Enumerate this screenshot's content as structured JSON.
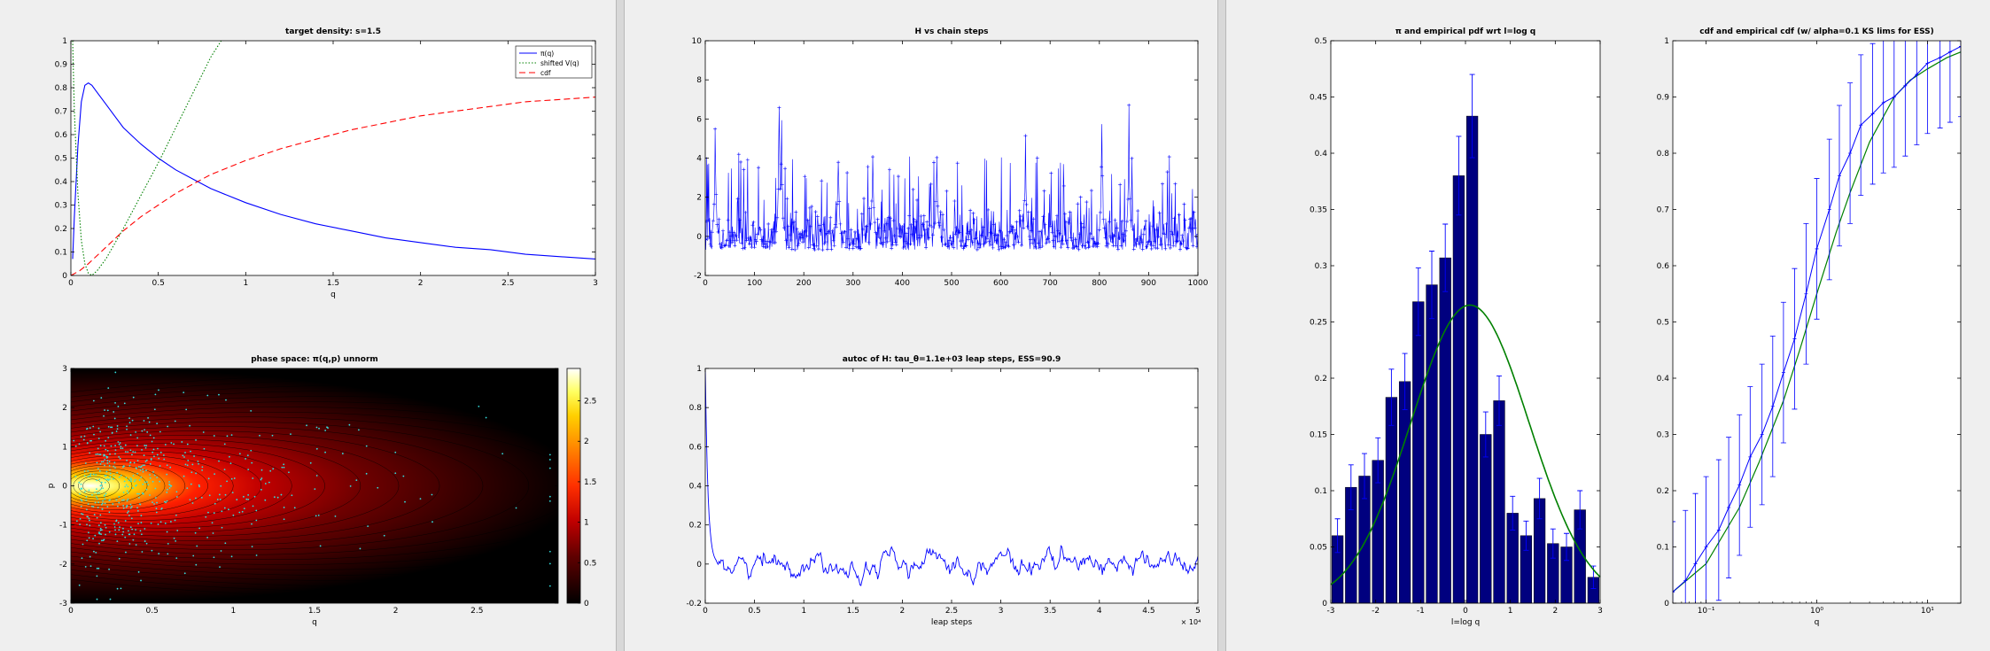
{
  "colors": {
    "blue": "#0000ff",
    "green": "#008000",
    "red": "#ff0000",
    "navy": "#00007f",
    "cyan": "#33e0e0"
  },
  "chart_data": [
    {
      "id": "target-density",
      "type": "line",
      "title": "target density: s=1.5",
      "xlabel": "q",
      "ylabel": "",
      "xlim": [
        0,
        3
      ],
      "ylim": [
        0,
        1
      ],
      "xticks": [
        "0",
        "0.5",
        "1",
        "1.5",
        "2",
        "2.5",
        "3"
      ],
      "yticks": [
        "0",
        "0.1",
        "0.2",
        "0.3",
        "0.4",
        "0.5",
        "0.6",
        "0.7",
        "0.8",
        "0.9",
        "1"
      ],
      "legend": {
        "position": "top-right",
        "entries": [
          "π(q)",
          "shifted V(q)",
          "cdf"
        ]
      },
      "series": [
        {
          "name": "π(q)",
          "color": "#0000ff",
          "style": "solid",
          "x": [
            0.01,
            0.02,
            0.04,
            0.06,
            0.08,
            0.1,
            0.12,
            0.15,
            0.2,
            0.25,
            0.3,
            0.4,
            0.5,
            0.6,
            0.7,
            0.8,
            0.9,
            1,
            1.2,
            1.4,
            1.6,
            1.8,
            2,
            2.2,
            2.4,
            2.6,
            2.8,
            3
          ],
          "y": [
            0.07,
            0.25,
            0.55,
            0.74,
            0.81,
            0.82,
            0.81,
            0.78,
            0.73,
            0.68,
            0.63,
            0.56,
            0.5,
            0.45,
            0.41,
            0.37,
            0.34,
            0.31,
            0.26,
            0.22,
            0.19,
            0.16,
            0.14,
            0.12,
            0.11,
            0.09,
            0.08,
            0.07
          ]
        },
        {
          "name": "shifted V(q)",
          "color": "#008000",
          "style": "dotted",
          "x": [
            0.01,
            0.02,
            0.04,
            0.06,
            0.08,
            0.1,
            0.12,
            0.15,
            0.2,
            0.3,
            0.4,
            0.5,
            0.6,
            0.7,
            0.8,
            0.86
          ],
          "y": [
            1,
            0.7,
            0.35,
            0.15,
            0.05,
            0.01,
            0.0,
            0.02,
            0.07,
            0.2,
            0.34,
            0.48,
            0.63,
            0.78,
            0.93,
            1.0
          ]
        },
        {
          "name": "cdf",
          "color": "#ff0000",
          "style": "dashed",
          "x": [
            0,
            0.05,
            0.1,
            0.2,
            0.3,
            0.4,
            0.5,
            0.6,
            0.7,
            0.8,
            1,
            1.2,
            1.4,
            1.6,
            1.8,
            2,
            2.2,
            2.4,
            2.6,
            2.8,
            3
          ],
          "y": [
            0,
            0.02,
            0.05,
            0.12,
            0.19,
            0.25,
            0.3,
            0.35,
            0.39,
            0.43,
            0.49,
            0.54,
            0.58,
            0.62,
            0.65,
            0.68,
            0.7,
            0.72,
            0.74,
            0.75,
            0.76
          ]
        }
      ]
    },
    {
      "id": "phase-space",
      "type": "heatmap",
      "title": "phase space: π(q,p) unnorm",
      "xlabel": "q",
      "ylabel": "p",
      "xlim": [
        0,
        3
      ],
      "ylim": [
        -3,
        3
      ],
      "xticks": [
        "0",
        "0.5",
        "1",
        "1.5",
        "2",
        "2.5"
      ],
      "yticks": [
        "-3",
        "-2",
        "-1",
        "0",
        "1",
        "2",
        "3"
      ],
      "colorbar": {
        "ticks": [
          "0",
          "0.5",
          "1",
          "1.5",
          "2",
          "2.5"
        ],
        "range": [
          0,
          2.9
        ]
      },
      "points": {
        "color": "#33e0e0",
        "count": 600
      }
    },
    {
      "id": "h-vs-steps",
      "type": "line",
      "title": "H vs chain steps",
      "xlabel": "",
      "ylabel": "",
      "xlim": [
        0,
        1000
      ],
      "ylim": [
        -2,
        10
      ],
      "xticks": [
        "0",
        "100",
        "200",
        "300",
        "400",
        "500",
        "600",
        "700",
        "800",
        "900",
        "1000"
      ],
      "yticks": [
        "-2",
        "0",
        "2",
        "4",
        "6",
        "8",
        "10"
      ],
      "series": [
        {
          "name": "",
          "color": "#0000ff",
          "style": "solid-plus"
        }
      ],
      "peaks": [
        {
          "x": 150,
          "y": 8.0
        },
        {
          "x": 155,
          "y": 6.8
        },
        {
          "x": 20,
          "y": 6.1
        },
        {
          "x": 650,
          "y": 5.2
        },
        {
          "x": 805,
          "y": 6.2
        },
        {
          "x": 860,
          "y": 7.2
        },
        {
          "x": 470,
          "y": 5.4
        },
        {
          "x": 340,
          "y": 5.0
        },
        {
          "x": 270,
          "y": 4.9
        }
      ]
    },
    {
      "id": "autocorr",
      "type": "line",
      "title": "autoc of H: tau_θ=1.1e+03 leap steps, ESS=90.9",
      "xlabel": "leap steps",
      "ylabel": "",
      "xlim": [
        0,
        50000
      ],
      "ylim": [
        -0.2,
        1
      ],
      "xticks": [
        "0",
        "0.5",
        "1",
        "1.5",
        "2",
        "2.5",
        "3",
        "3.5",
        "4",
        "4.5",
        "5"
      ],
      "xexponent": "× 10⁴",
      "yticks": [
        "-0.2",
        "0",
        "0.2",
        "0.4",
        "0.6",
        "0.8",
        "1"
      ],
      "series": [
        {
          "name": "",
          "color": "#0000ff",
          "style": "solid"
        }
      ]
    },
    {
      "id": "pdf-log",
      "type": "bar",
      "title": "π and empirical pdf wrt l=log q",
      "xlabel": "l=log q",
      "ylabel": "",
      "xlim": [
        -3,
        3
      ],
      "ylim": [
        0,
        0.5
      ],
      "xticks": [
        "-3",
        "-2",
        "-1",
        "0",
        "1",
        "2",
        "3"
      ],
      "yticks": [
        "0",
        "0.05",
        "0.1",
        "0.15",
        "0.2",
        "0.25",
        "0.3",
        "0.35",
        "0.4",
        "0.45",
        "0.5"
      ],
      "bars": {
        "x": [
          -2.85,
          -2.55,
          -2.25,
          -1.95,
          -1.65,
          -1.35,
          -1.05,
          -0.75,
          -0.45,
          -0.15,
          0.15,
          0.45,
          0.75,
          1.05,
          1.35,
          1.65,
          1.95,
          2.25,
          2.55,
          2.85
        ],
        "values": [
          0.06,
          0.103,
          0.113,
          0.127,
          0.183,
          0.197,
          0.268,
          0.283,
          0.307,
          0.38,
          0.433,
          0.15,
          0.18,
          0.08,
          0.06,
          0.093,
          0.053,
          0.05,
          0.083,
          0.023
        ],
        "errors": [
          0.015,
          0.02,
          0.02,
          0.02,
          0.025,
          0.025,
          0.03,
          0.03,
          0.03,
          0.035,
          0.037,
          0.02,
          0.022,
          0.015,
          0.013,
          0.018,
          0.013,
          0.012,
          0.017,
          0.01
        ]
      },
      "curve": {
        "color": "#008000",
        "mu": 0.1,
        "sigma": 1.5,
        "peak": 0.265
      }
    },
    {
      "id": "cdf-log",
      "type": "line",
      "title": "cdf and empirical cdf (w/ alpha=0.1 KS lims for ESS)",
      "xlabel": "q",
      "ylabel": "",
      "xlim": [
        0.05,
        20
      ],
      "ylim": [
        0,
        1
      ],
      "xscale": "log",
      "xticks": [
        "10⁻¹",
        "10⁰",
        "10¹"
      ],
      "yticks": [
        "0",
        "0.1",
        "0.2",
        "0.3",
        "0.4",
        "0.5",
        "0.6",
        "0.7",
        "0.8",
        "0.9",
        "1"
      ],
      "series": [
        {
          "name": "",
          "color": "#0000ff",
          "style": "errorbar",
          "x": [
            0.05,
            0.065,
            0.08,
            0.1,
            0.13,
            0.16,
            0.2,
            0.25,
            0.32,
            0.4,
            0.5,
            0.63,
            0.8,
            1,
            1.3,
            1.6,
            2,
            2.5,
            3.2,
            4,
            5,
            6.3,
            8,
            10,
            13,
            16,
            20
          ],
          "y": [
            0.02,
            0.04,
            0.07,
            0.1,
            0.13,
            0.17,
            0.21,
            0.26,
            0.3,
            0.35,
            0.41,
            0.47,
            0.55,
            0.63,
            0.7,
            0.76,
            0.8,
            0.85,
            0.87,
            0.89,
            0.9,
            0.92,
            0.94,
            0.96,
            0.97,
            0.98,
            0.99
          ]
        },
        {
          "name": "",
          "color": "#008000",
          "style": "solid",
          "x": [
            0.05,
            0.1,
            0.2,
            0.3,
            0.5,
            0.7,
            1,
            1.5,
            2,
            3,
            5,
            7,
            10,
            15,
            20
          ],
          "y": [
            0.02,
            0.07,
            0.17,
            0.25,
            0.36,
            0.45,
            0.55,
            0.66,
            0.73,
            0.82,
            0.9,
            0.93,
            0.95,
            0.97,
            0.98
          ]
        }
      ]
    }
  ]
}
